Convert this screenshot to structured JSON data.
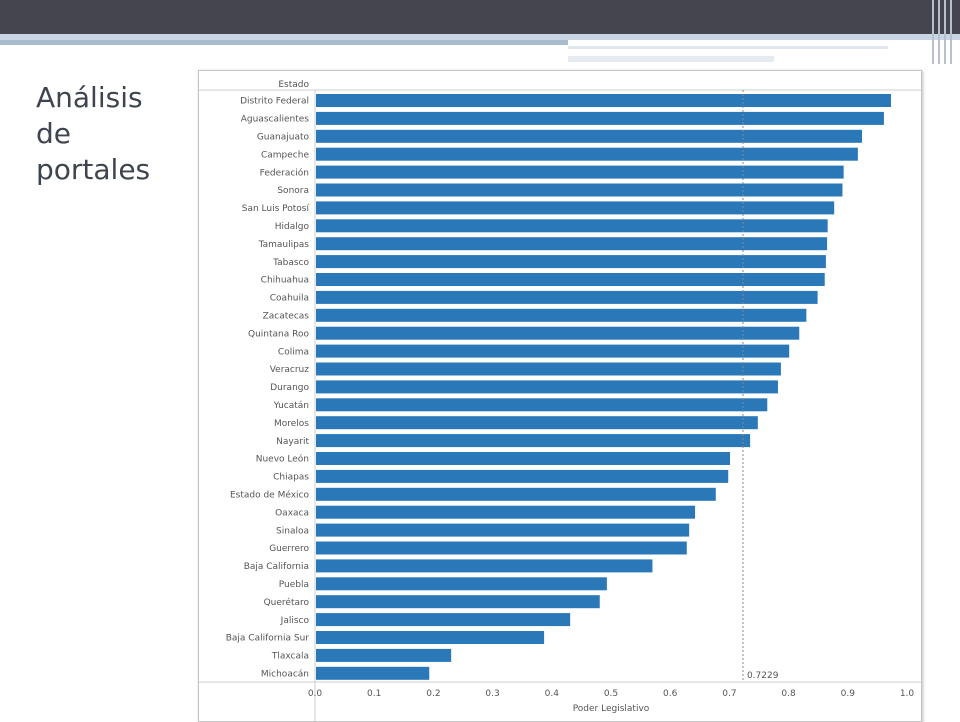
{
  "slide": {
    "title_lines": [
      "Análisis",
      "de",
      "portales"
    ]
  },
  "colors": {
    "bar": "#2a78b8",
    "header": "#454550",
    "reference_line": "#888888"
  },
  "chart_data": {
    "type": "bar",
    "orientation": "horizontal",
    "row_header": "Estado",
    "xlabel": "Poder Legislativo",
    "xlim": [
      0.0,
      1.0
    ],
    "xticks": [
      "0.0",
      "0.1",
      "0.2",
      "0.3",
      "0.4",
      "0.5",
      "0.6",
      "0.7",
      "0.8",
      "0.9",
      "1.0"
    ],
    "reference_line": {
      "value": 0.7229,
      "label": "0.7229"
    },
    "categories": [
      "Distrito Federal",
      "Aguascalientes",
      "Guanajuato",
      "Campeche",
      "Federación",
      "Sonora",
      "San Luis Potosí",
      "Hidalgo",
      "Tamaulipas",
      "Tabasco",
      "Chihuahua",
      "Coahuila",
      "Zacatecas",
      "Quintana Roo",
      "Colima",
      "Veracruz",
      "Durango",
      "Yucatán",
      "Morelos",
      "Nayarit",
      "Nuevo León",
      "Chiapas",
      "Estado de México",
      "Oaxaca",
      "Sinaloa",
      "Guerrero",
      "Baja California",
      "Puebla",
      "Querétaro",
      "Jalisco",
      "Baja California Sur",
      "Tlaxcala",
      "Michoacán"
    ],
    "values": [
      0.973,
      0.961,
      0.924,
      0.917,
      0.893,
      0.891,
      0.877,
      0.866,
      0.865,
      0.863,
      0.861,
      0.849,
      0.83,
      0.818,
      0.801,
      0.787,
      0.782,
      0.764,
      0.748,
      0.735,
      0.701,
      0.698,
      0.677,
      0.642,
      0.632,
      0.628,
      0.57,
      0.493,
      0.481,
      0.431,
      0.387,
      0.23,
      0.193
    ]
  }
}
